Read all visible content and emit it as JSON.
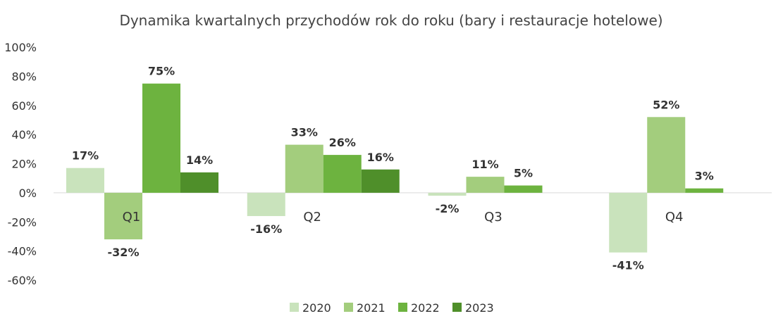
{
  "chart_data": {
    "type": "bar",
    "title": "Dynamika kwartalnych przychodów rok do roku (bary i restauracje hotelowe)",
    "xlabel": "",
    "ylabel": "",
    "categories": [
      "Q1",
      "Q2",
      "Q3",
      "Q4"
    ],
    "ylim": [
      -60,
      100
    ],
    "yticks": [
      100,
      80,
      60,
      40,
      20,
      0,
      -20,
      -40,
      -60
    ],
    "ytick_labels": [
      "100%",
      "80%",
      "60%",
      "40%",
      "20%",
      "0%",
      "-20%",
      "-40%",
      "-60%"
    ],
    "grid": false,
    "legend_position": "bottom",
    "series": [
      {
        "name": "2020",
        "color": "#c9e3bc",
        "values": [
          17,
          -16,
          -2,
          -41
        ],
        "labels": [
          "17%",
          "-16%",
          "-2%",
          "-41%"
        ]
      },
      {
        "name": "2021",
        "color": "#a3cd7d",
        "values": [
          -32,
          33,
          11,
          52
        ],
        "labels": [
          "-32%",
          "33%",
          "11%",
          "52%"
        ]
      },
      {
        "name": "2022",
        "color": "#6db33f",
        "values": [
          75,
          26,
          5,
          3
        ],
        "labels": [
          "75%",
          "26%",
          "5%",
          "3%"
        ]
      },
      {
        "name": "2023",
        "color": "#4f8f2a",
        "values": [
          14,
          16,
          null,
          null
        ],
        "labels": [
          "14%",
          "16%",
          "",
          ""
        ]
      }
    ]
  }
}
